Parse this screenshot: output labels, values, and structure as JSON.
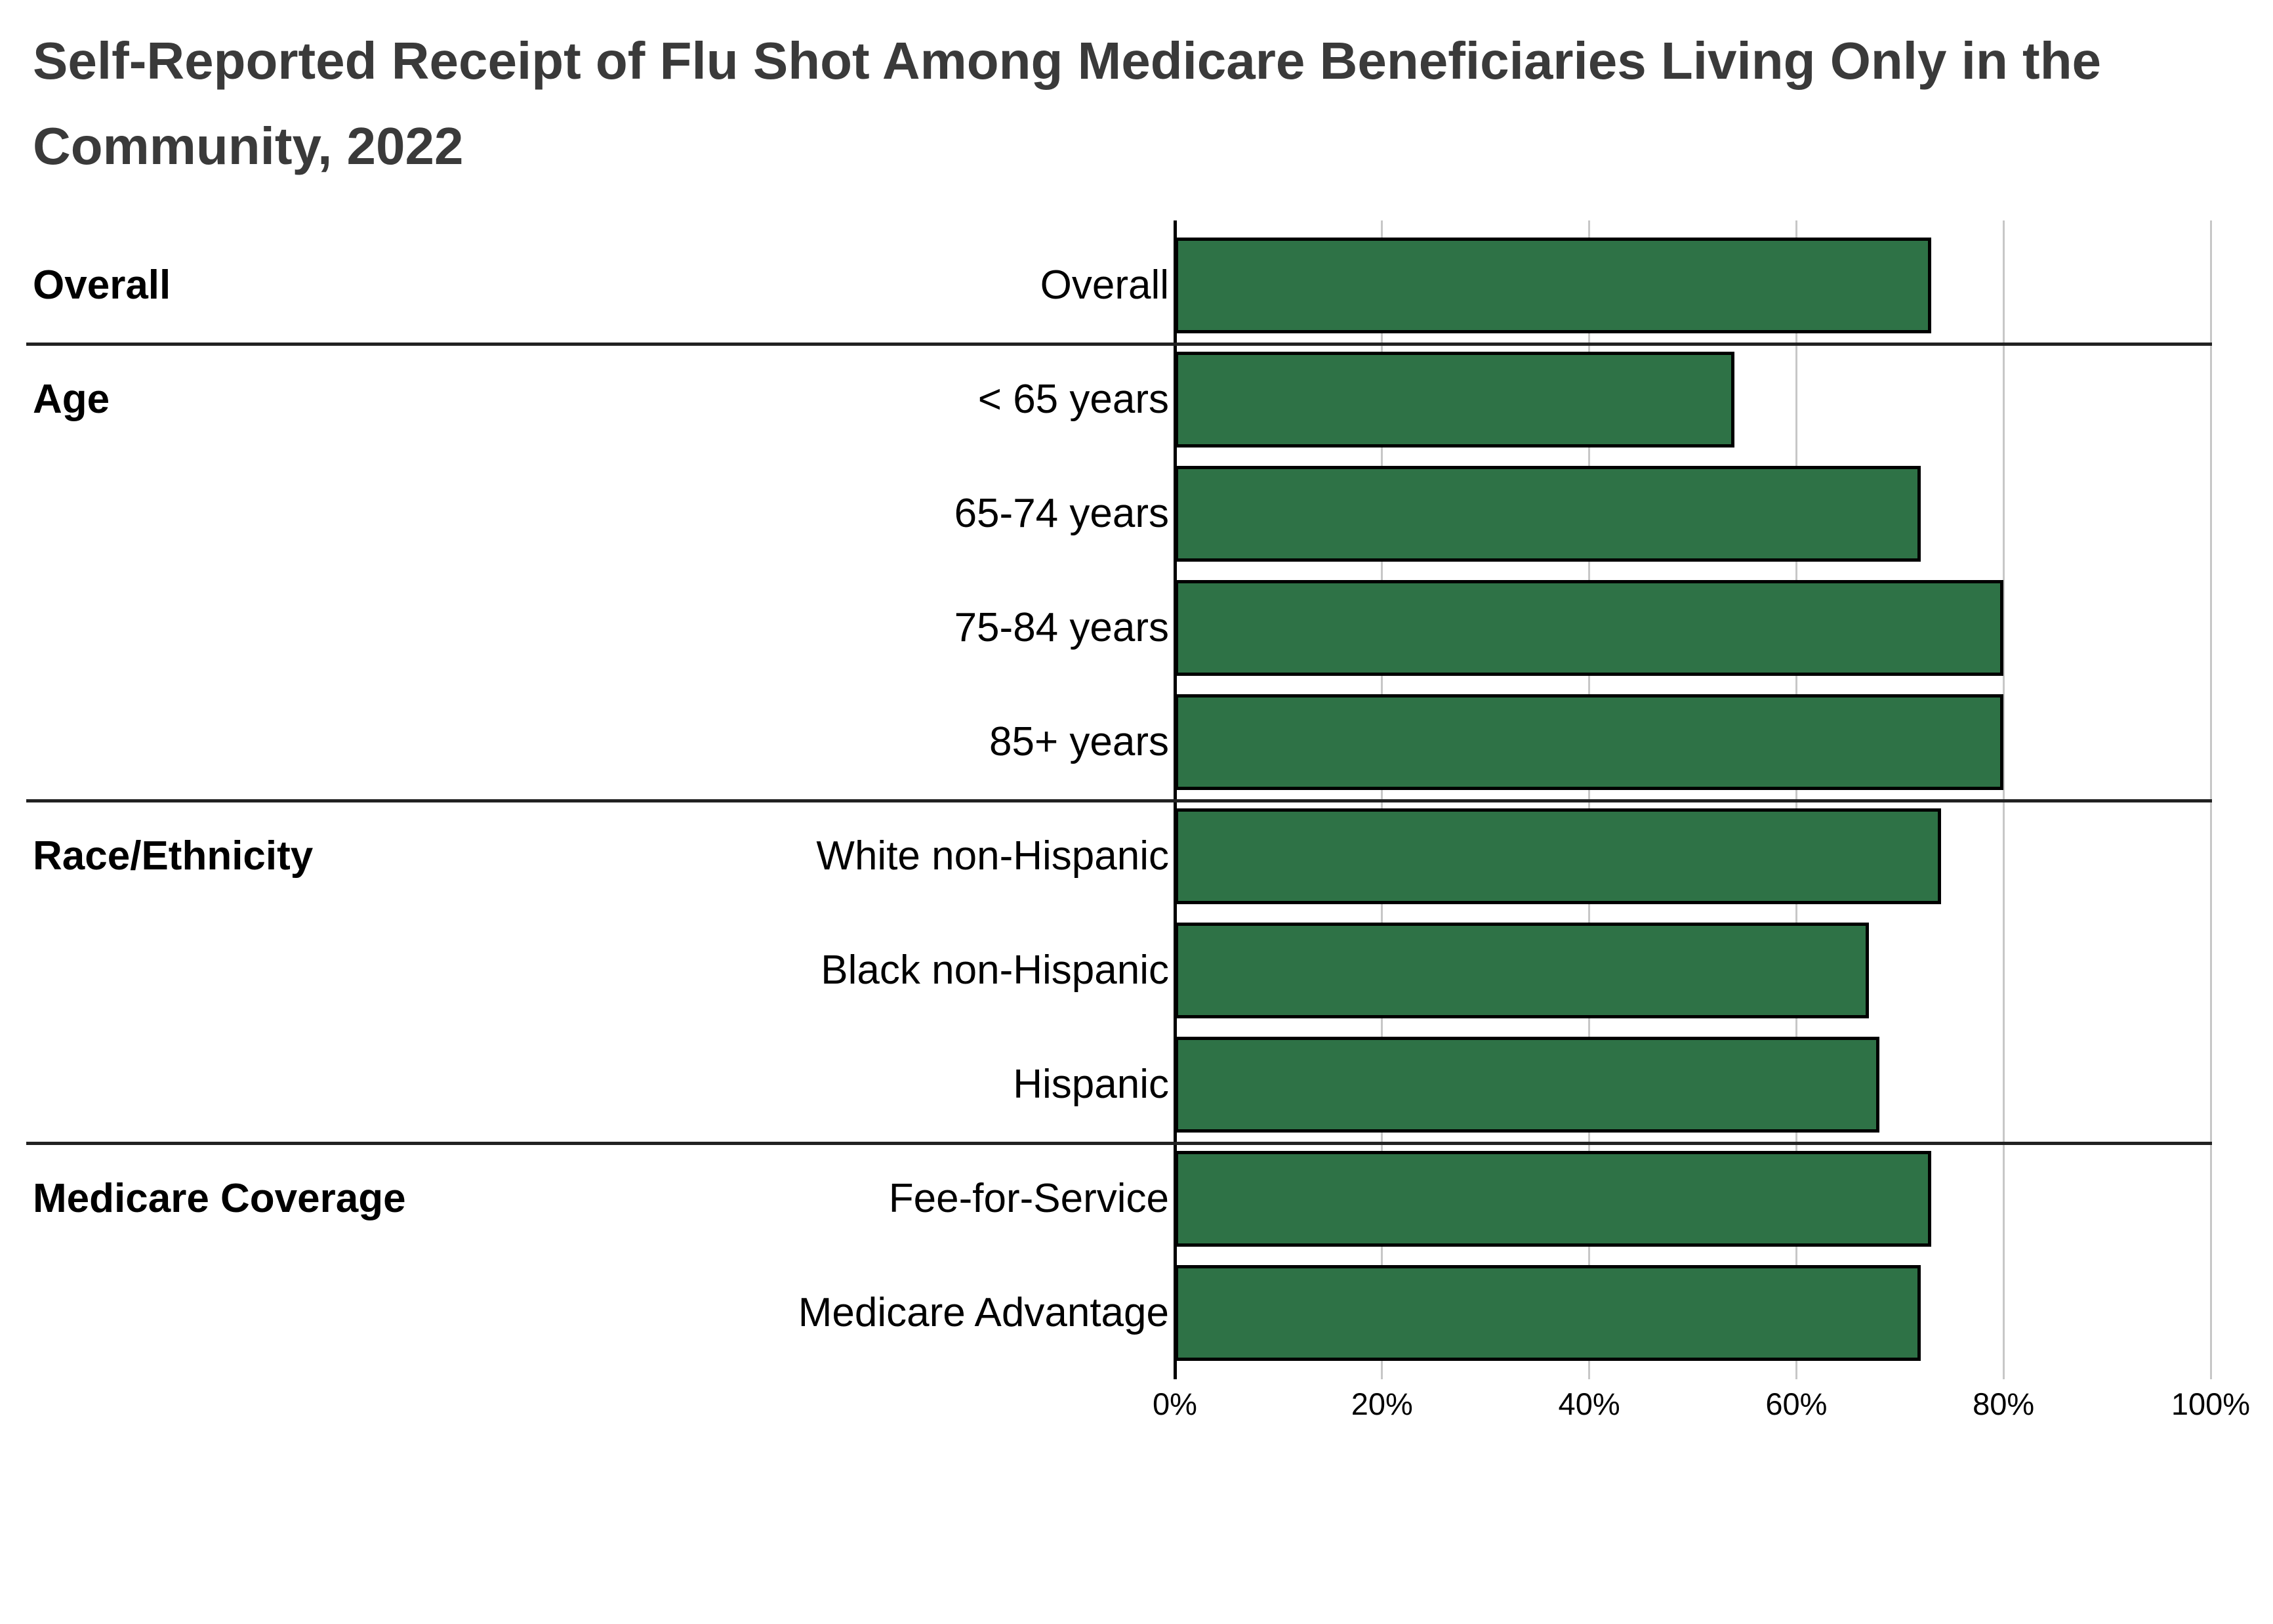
{
  "page": {
    "background": "#ffffff"
  },
  "header": {
    "title_lines": [
      "Self-Reported Receipt of Flu Shot Among Medicare Beneficiaries Living Only in the",
      "Community, 2022"
    ],
    "title_color": "#3A3A3A"
  },
  "chart_data": {
    "type": "bar",
    "orientation": "horizontal",
    "title": "Self-Reported Receipt of Flu Shot Among Medicare Beneficiaries Living Only in the Community, 2022",
    "xlabel": "",
    "ylabel": "",
    "xlim": [
      0,
      100
    ],
    "unit": "%",
    "grid": true,
    "legend": false,
    "x_tick_values": [
      0,
      20,
      40,
      60,
      80,
      100
    ],
    "x_tick_labels": [
      "0%",
      "20%",
      "40%",
      "60%",
      "80%",
      "100%"
    ],
    "bar_color": "#2E7246",
    "bar_border_color": "#000000",
    "gridline_color": "#C7C7C7",
    "axis_color": "#000000",
    "separator_color": "#222222",
    "groups": [
      {
        "label": "Overall",
        "items": [
          {
            "label": "Overall",
            "value": 73
          }
        ]
      },
      {
        "label": "Age",
        "items": [
          {
            "label": "< 65 years",
            "value": 54
          },
          {
            "label": "65-74 years",
            "value": 72
          },
          {
            "label": "75-84 years",
            "value": 80
          },
          {
            "label": "85+ years",
            "value": 80
          }
        ]
      },
      {
        "label": "Race/Ethnicity",
        "items": [
          {
            "label": "White non-Hispanic",
            "value": 74
          },
          {
            "label": "Black non-Hispanic",
            "value": 67
          },
          {
            "label": "Hispanic",
            "value": 68
          }
        ]
      },
      {
        "label": "Medicare Coverage",
        "items": [
          {
            "label": "Fee-for-Service",
            "value": 73
          },
          {
            "label": "Medicare Advantage",
            "value": 72
          }
        ]
      }
    ]
  }
}
